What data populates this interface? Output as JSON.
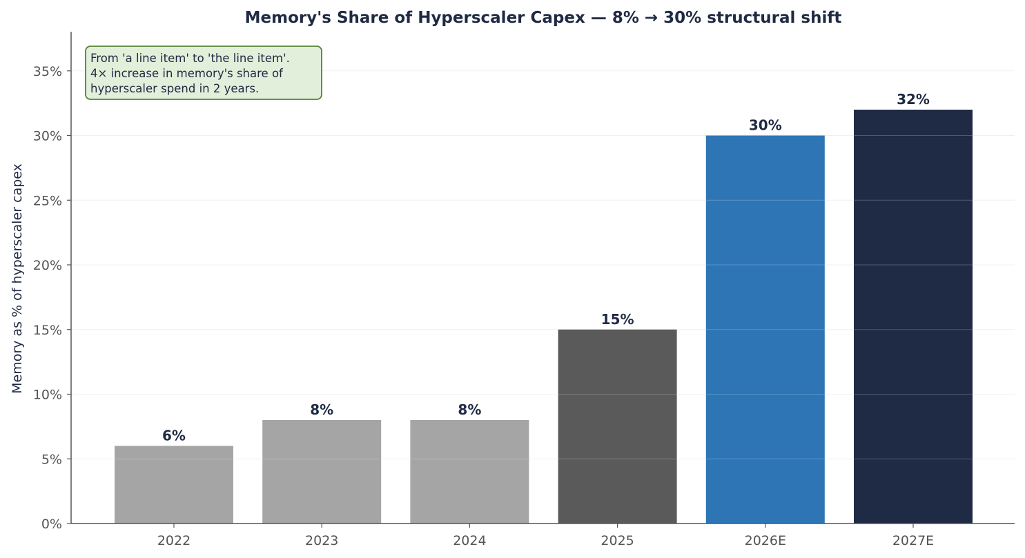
{
  "chart_data": {
    "type": "bar",
    "title": "Memory's Share of Hyperscaler Capex — 8% → 30% structural shift",
    "xlabel": "",
    "ylabel": "Memory as % of hyperscaler capex",
    "categories": [
      "2022",
      "2023",
      "2024",
      "2025",
      "2026E",
      "2027E"
    ],
    "values": [
      6,
      8,
      8,
      15,
      30,
      32
    ],
    "data_labels": [
      "6%",
      "8%",
      "8%",
      "15%",
      "30%",
      "32%"
    ],
    "bar_colors": [
      "#a5a5a5",
      "#a5a5a5",
      "#a5a5a5",
      "#5a5a5a",
      "#2e75b6",
      "#1f2a44"
    ],
    "ylim": [
      0,
      38
    ],
    "yticks": [
      0,
      5,
      10,
      15,
      20,
      25,
      30,
      35
    ],
    "ytick_labels": [
      "0%",
      "5%",
      "10%",
      "15%",
      "20%",
      "25%",
      "30%",
      "35%"
    ],
    "grid": true,
    "annotation": {
      "lines": [
        "From 'a line item' to 'the line item'.",
        "4× increase in memory's share of",
        "hyperscaler spend in 2 years."
      ],
      "placement": "top-left",
      "fill_color": "#e2efda",
      "border_color": "#548235"
    }
  }
}
